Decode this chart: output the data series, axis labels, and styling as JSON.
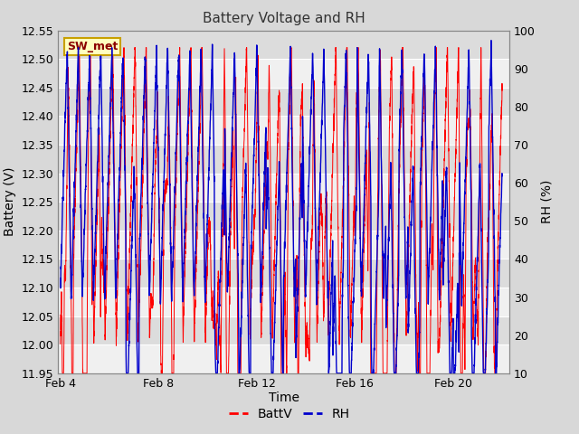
{
  "title": "Battery Voltage and RH",
  "xlabel": "Time",
  "ylabel_left": "Battery (V)",
  "ylabel_right": "RH (%)",
  "ylim_left": [
    11.95,
    12.55
  ],
  "ylim_right": [
    10,
    100
  ],
  "yticks_left": [
    11.95,
    12.0,
    12.05,
    12.1,
    12.15,
    12.2,
    12.25,
    12.3,
    12.35,
    12.4,
    12.45,
    12.5,
    12.55
  ],
  "yticks_right": [
    10,
    20,
    30,
    40,
    50,
    60,
    70,
    80,
    90,
    100
  ],
  "xtick_positions": [
    4,
    8,
    12,
    16,
    20
  ],
  "xtick_labels": [
    "Feb 4",
    "Feb 8",
    "Feb 12",
    "Feb 16",
    "Feb 20"
  ],
  "batt_color": "#FF0000",
  "rh_color": "#0000CC",
  "legend_labels": [
    "BattV",
    "RH"
  ],
  "annotation_text": "SW_met",
  "annotation_bg": "#FFFFC0",
  "annotation_border": "#C8A000",
  "fig_facecolor": "#D8D8D8",
  "plot_bg_light": "#F0F0F0",
  "plot_bg_dark": "#DCDCDC",
  "title_fontsize": 11,
  "axis_fontsize": 10,
  "tick_fontsize": 9,
  "legend_fontsize": 10,
  "num_points": 5000,
  "date_start": 4,
  "date_end": 22
}
